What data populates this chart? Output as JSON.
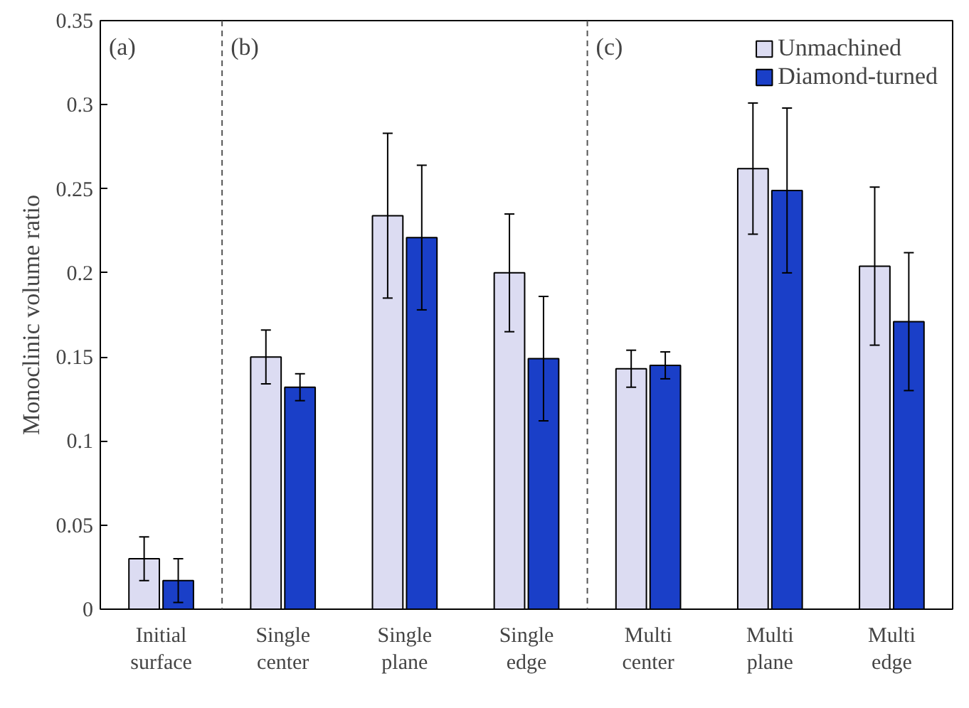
{
  "chart_data": {
    "type": "bar",
    "ylabel": "Monoclinic volume ratio",
    "categories": [
      "Initial\nsurface",
      "Single\ncenter",
      "Single\nplane",
      "Single\nedge",
      "Multi\ncenter",
      "Multi\nplane",
      "Multi\nedge"
    ],
    "series": [
      {
        "name": "Unmachined",
        "color": "#dcdcf2",
        "values": [
          0.03,
          0.15,
          0.234,
          0.2,
          0.143,
          0.262,
          0.204
        ],
        "errors": [
          0.013,
          0.016,
          0.049,
          0.035,
          0.011,
          0.039,
          0.047
        ]
      },
      {
        "name": "Diamond-turned",
        "color": "#1a3fc8",
        "values": [
          0.017,
          0.132,
          0.221,
          0.149,
          0.145,
          0.249,
          0.171
        ],
        "errors": [
          0.013,
          0.008,
          0.043,
          0.037,
          0.008,
          0.049,
          0.041
        ]
      }
    ],
    "ylim": [
      0,
      0.35
    ],
    "yticks": [
      0,
      0.05,
      0.1,
      0.15,
      0.2,
      0.25,
      0.3,
      0.35
    ],
    "annotations": [
      "(a)",
      "(b)",
      "(c)"
    ],
    "legend": "top right",
    "grid": false
  }
}
